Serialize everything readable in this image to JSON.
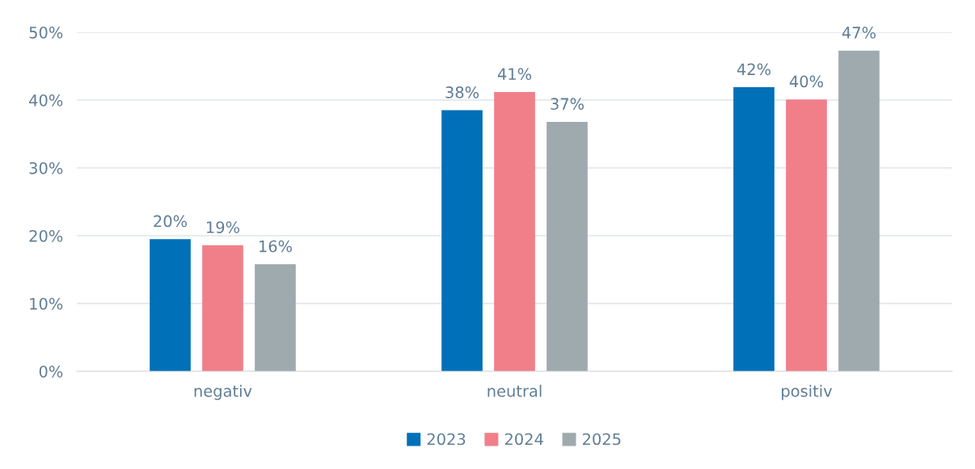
{
  "chart_data": {
    "type": "bar",
    "categories": [
      "negativ",
      "neutral",
      "positiv"
    ],
    "series": [
      {
        "name": "2023",
        "color": "#0070b8",
        "values": [
          19.5,
          38.5,
          41.9
        ],
        "value_labels": [
          "20%",
          "38%",
          "42%"
        ]
      },
      {
        "name": "2024",
        "color": "#f07f8a",
        "values": [
          18.6,
          41.2,
          40.1
        ],
        "value_labels": [
          "19%",
          "41%",
          "40%"
        ]
      },
      {
        "name": "2025",
        "color": "#9faaae",
        "values": [
          15.8,
          36.8,
          47.3
        ],
        "value_labels": [
          "16%",
          "37%",
          "47%"
        ]
      }
    ],
    "ylim": [
      0,
      50
    ],
    "yticks": [
      {
        "value": 0,
        "label": "0%"
      },
      {
        "value": 10,
        "label": "10%"
      },
      {
        "value": 20,
        "label": "20%"
      },
      {
        "value": 30,
        "label": "30%"
      },
      {
        "value": 40,
        "label": "40%"
      },
      {
        "value": 50,
        "label": "50%"
      }
    ],
    "grid": "y",
    "legend": "bottom"
  }
}
